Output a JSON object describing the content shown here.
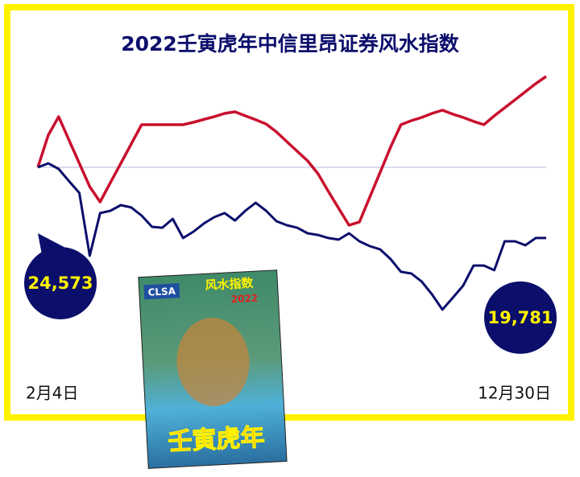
{
  "chart_data": {
    "type": "line",
    "title": "2022壬寅虎年中信里昂证券风水指数",
    "categories": [
      "2月4日",
      null,
      null,
      null,
      null,
      null,
      null,
      null,
      null,
      null,
      null,
      null,
      null,
      null,
      null,
      null,
      null,
      null,
      null,
      null,
      null,
      null,
      null,
      null,
      null,
      null,
      null,
      null,
      null,
      null,
      null,
      null,
      null,
      null,
      null,
      null,
      null,
      null,
      null,
      null,
      null,
      null,
      null,
      null,
      null,
      null,
      null,
      null,
      null,
      "12月30日"
    ],
    "ylim": [
      14000,
      31000
    ],
    "series": [
      {
        "color": "#c8102e",
        "values": [
          24570,
          26750,
          28000,
          26420,
          24840,
          23260,
          22230,
          23540,
          24840,
          26150,
          27460,
          27460,
          27460,
          27460,
          27460,
          27620,
          27810,
          28000,
          28220,
          28330,
          28060,
          27790,
          27510,
          26970,
          26310,
          25660,
          25010,
          24140,
          22940,
          21790,
          20650,
          20870,
          22560,
          24240,
          25930,
          27460,
          27730,
          27950,
          28220,
          28440,
          28170,
          27950,
          27680,
          27460,
          28060,
          28600,
          29150,
          29690,
          30240,
          30730
        ]
      },
      {
        "color": "#0b0e6b",
        "values": [
          24573,
          24840,
          24460,
          23640,
          22830,
          18580,
          21470,
          21630,
          22010,
          21850,
          21300,
          20540,
          20480,
          21080,
          19780,
          20210,
          20760,
          21190,
          21470,
          20970,
          21630,
          22170,
          21630,
          20920,
          20650,
          20480,
          20100,
          19990,
          19780,
          19670,
          20100,
          19560,
          19230,
          19010,
          18360,
          17490,
          17380,
          16830,
          15960,
          14930,
          15740,
          16560,
          17920,
          17920,
          17600,
          19560,
          19560,
          19290,
          19780,
          19781
        ],
        "value_labels": [
          "24,573",
          null,
          null,
          null,
          null,
          null,
          null,
          null,
          null,
          null,
          null,
          null,
          null,
          null,
          null,
          null,
          null,
          null,
          null,
          null,
          null,
          null,
          null,
          null,
          null,
          null,
          null,
          null,
          null,
          null,
          null,
          null,
          null,
          null,
          null,
          null,
          null,
          null,
          null,
          null,
          null,
          null,
          null,
          null,
          null,
          null,
          null,
          null,
          null,
          "19,781"
        ]
      }
    ]
  },
  "cover": {
    "brand": "CLSA",
    "title": "风水指数",
    "year": "2022",
    "subtitle": "壬寅虎年"
  }
}
